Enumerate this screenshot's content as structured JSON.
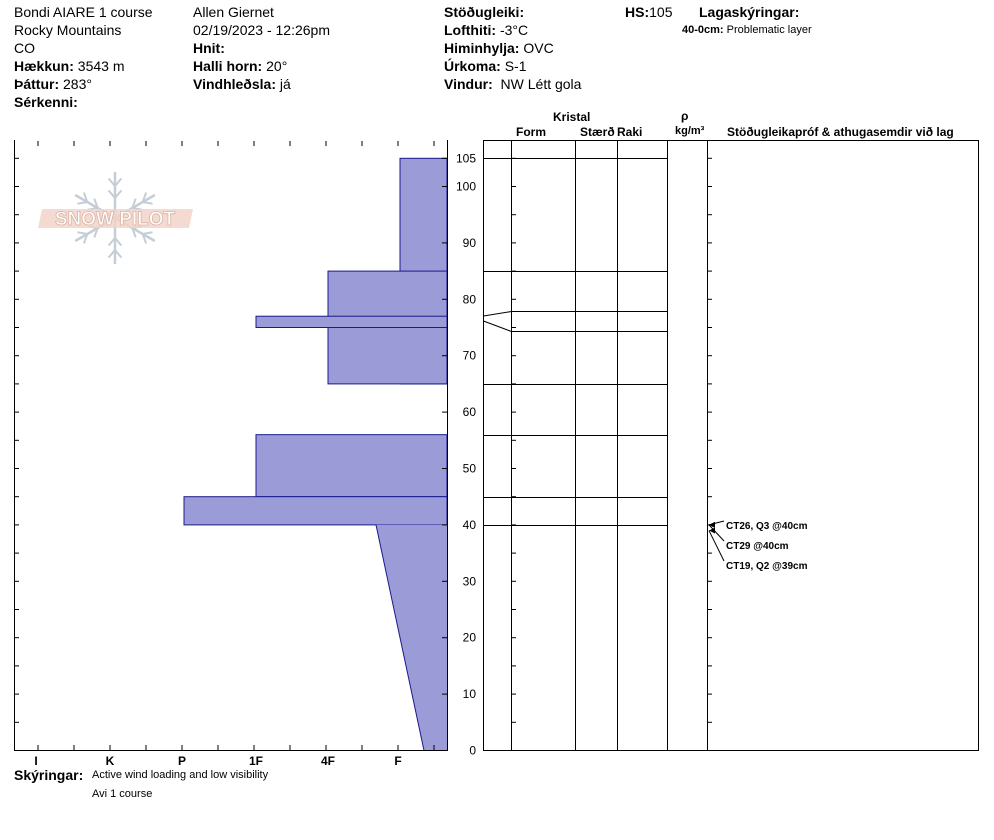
{
  "header": {
    "location": "Bondi AIARE 1 course",
    "range": "Rocky Mountains",
    "state": "CO",
    "elevation_label": "Hækkun:",
    "elevation_value": "3543 m",
    "aspect_label": "Þáttur:",
    "aspect_value": "283°",
    "features_label": "Sérkenni:",
    "observer": "Allen Giernet",
    "datetime": "02/19/2023 - 12:26pm",
    "coords_label": "Hnit:",
    "slope_label": "Halli horn:",
    "slope_value": "20°",
    "wind_loading_label": "Vindhleðsla:",
    "wind_loading_value": "já",
    "stability_label": "Stöðugleiki:",
    "air_temp_label": "Lofthiti:",
    "air_temp_value": "-3°C",
    "sky_label": "Himinhylja:",
    "sky_value": "OVC",
    "precip_label": "Úrkoma:",
    "precip_value": "S-1",
    "wind_label": "Vindur:",
    "wind_value": "NW Létt gola",
    "hs_label": "HS:",
    "hs_value": "105",
    "layer_notes_label": "Lagaskýringar:",
    "layer_note_depth": "40-0cm:",
    "layer_note_text": "Problematic layer"
  },
  "columns": {
    "crystal": "Kristal",
    "form": "Form",
    "size": "Stærð",
    "wetness": "Raki",
    "density_symbol": "ρ",
    "density_unit": "kg/m³",
    "tests": "Stöðugleikapróf & athugasemdir við lag"
  },
  "logo": "SNOW PILOT",
  "notes": {
    "label": "Skýringar:",
    "line1": "Active wind loading and low visibility",
    "line2": "Avi 1 course"
  },
  "colors": {
    "profile_fill": "#9b9bd8",
    "profile_stroke": "#1a1a8c"
  },
  "chart_data": {
    "type": "bar",
    "x_categories": [
      "I",
      "K",
      "P",
      "1F",
      "4F",
      "F"
    ],
    "y_ticks": [
      0,
      10,
      20,
      30,
      40,
      50,
      60,
      70,
      80,
      90,
      100,
      105
    ],
    "ylim": [
      0,
      105
    ],
    "layers": [
      {
        "top": 105,
        "bottom": 65,
        "hardness": "F"
      },
      {
        "top": 85,
        "bottom": 65,
        "hardness": "4F"
      },
      {
        "top": 77,
        "bottom": 75,
        "hardness": "1F"
      },
      {
        "top": 56,
        "bottom": 45,
        "hardness": "1F"
      },
      {
        "top": 45,
        "bottom": 40,
        "hardness": "P"
      },
      {
        "top": 40,
        "bottom": 0,
        "hardness_top": "F+",
        "hardness_bottom": "F-"
      }
    ],
    "layer_boundaries": [
      105,
      85,
      77.5,
      74,
      65,
      56,
      45,
      40
    ],
    "tests": [
      {
        "label": "CT26, Q3 @40cm",
        "depth": 40
      },
      {
        "label": "CT29 @40cm",
        "depth": 40
      },
      {
        "label": "CT19, Q2 @39cm",
        "depth": 39
      }
    ]
  }
}
